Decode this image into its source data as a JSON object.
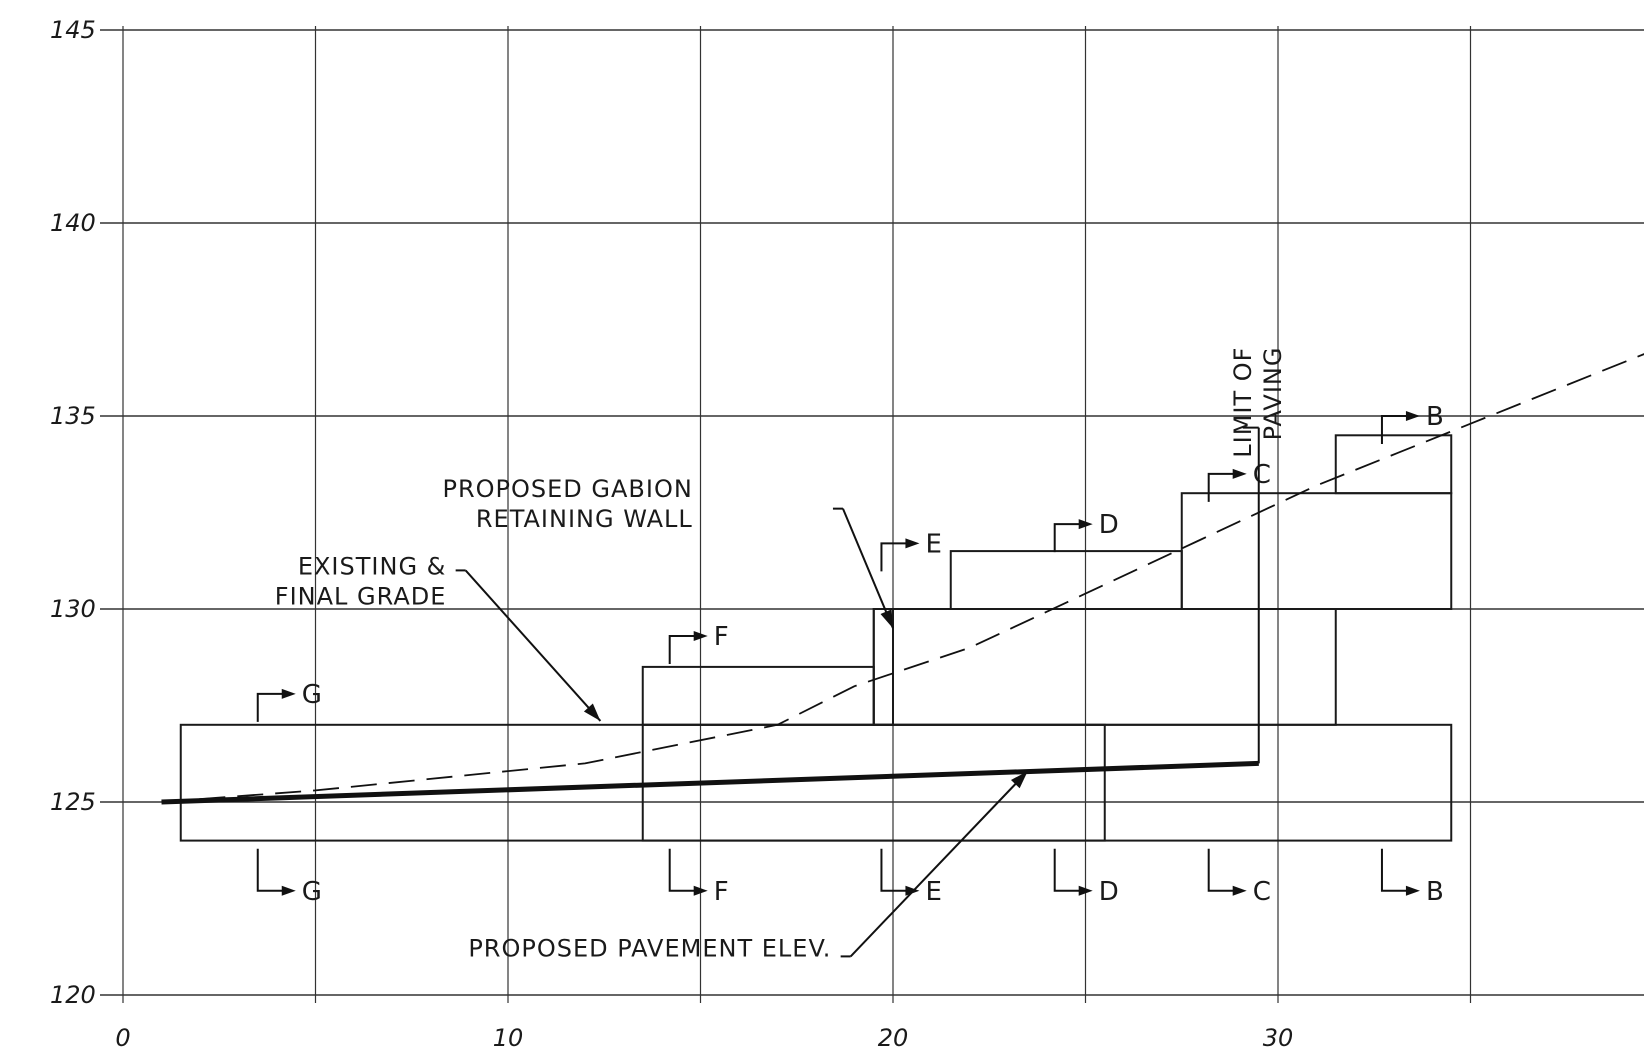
{
  "chart_data": {
    "type": "line",
    "title": "",
    "xlabel": "",
    "ylabel": "",
    "xlim": [
      0,
      40
    ],
    "ylim": [
      120,
      145
    ],
    "x_ticks": [
      0,
      10,
      20,
      30
    ],
    "x_tick_labels": [
      "0",
      "10",
      "20",
      "30"
    ],
    "y_ticks": [
      120,
      125,
      130,
      135,
      140,
      145
    ],
    "y_tick_labels": [
      "120",
      "125",
      "130",
      "135",
      "140",
      "145"
    ],
    "grid": true,
    "grid_x_step": 5,
    "grid_y_step": 5,
    "series": [
      {
        "style": "dashed",
        "x": [
          1,
          5,
          12,
          17,
          19,
          22,
          25,
          28,
          31,
          35,
          40
        ],
        "y": [
          125.0,
          125.3,
          126.0,
          127.0,
          128.0,
          129.0,
          130.4,
          131.8,
          133.2,
          134.8,
          136.8
        ]
      },
      {
        "style": "thick",
        "x": [
          1,
          29.5
        ],
        "y": [
          125.0,
          126.0
        ]
      }
    ],
    "boxes": [
      {
        "x0": 1.5,
        "x1": 25.5,
        "y0": 124.0,
        "y1": 127.0
      },
      {
        "x0": 13.5,
        "x1": 34.5,
        "y0": 124.0,
        "y1": 127.0
      },
      {
        "x0": 13.5,
        "x1": 19.5,
        "y0": 127.0,
        "y1": 128.5
      },
      {
        "x0": 19.5,
        "x1": 31.5,
        "y0": 127.0,
        "y1": 130.0
      },
      {
        "x0": 19.5,
        "x1": 20.0,
        "y0": 127.0,
        "y1": 130.0
      },
      {
        "x0": 21.5,
        "x1": 27.5,
        "y0": 130.0,
        "y1": 131.5
      },
      {
        "x0": 27.5,
        "x1": 34.5,
        "y0": 130.0,
        "y1": 133.0
      },
      {
        "x0": 31.5,
        "x1": 34.5,
        "y0": 133.0,
        "y1": 134.5
      }
    ],
    "section_markers": [
      {
        "label": "G",
        "x": 3.5,
        "top_y": 127.8,
        "bottom_y": 122.7
      },
      {
        "label": "F",
        "x": 14.2,
        "top_y": 129.3,
        "bottom_y": 122.7
      },
      {
        "label": "E",
        "x": 19.7,
        "top_y": 131.7,
        "bottom_y": 122.7
      },
      {
        "label": "D",
        "x": 24.2,
        "top_y": 132.2,
        "bottom_y": 122.7
      },
      {
        "label": "C",
        "x": 28.2,
        "top_y": 133.5,
        "bottom_y": 122.7
      },
      {
        "label": "B",
        "x": 32.7,
        "top_y": 135.0,
        "bottom_y": 122.7
      }
    ],
    "annotations": [
      {
        "lines": [
          "EXISTING &",
          "FINAL GRADE"
        ],
        "text_x": 8.4,
        "text_y": 130.9,
        "from_x": 8.9,
        "from_y": 131.0,
        "to_x": 12.4,
        "to_y": 127.1
      },
      {
        "lines": [
          "PROPOSED GABION",
          "RETAINING WALL"
        ],
        "text_x": 14.8,
        "text_y": 132.9,
        "from_x": 18.7,
        "from_y": 132.6,
        "to_x": 20.0,
        "to_y": 129.5
      },
      {
        "lines": [
          "PROPOSED PAVEMENT ELEV."
        ],
        "text_x": 18.4,
        "text_y": 121.0,
        "from_x": 18.9,
        "from_y": 121.0,
        "to_x": 23.5,
        "to_y": 125.8
      },
      {
        "lines": [
          "LIMIT OF",
          "PAVING"
        ],
        "vertical": true,
        "text_x": 29.3,
        "text_y": 136.8,
        "from_x": 29.5,
        "from_y": 134.7,
        "to_x": 29.5,
        "to_y": 126.0
      }
    ]
  }
}
